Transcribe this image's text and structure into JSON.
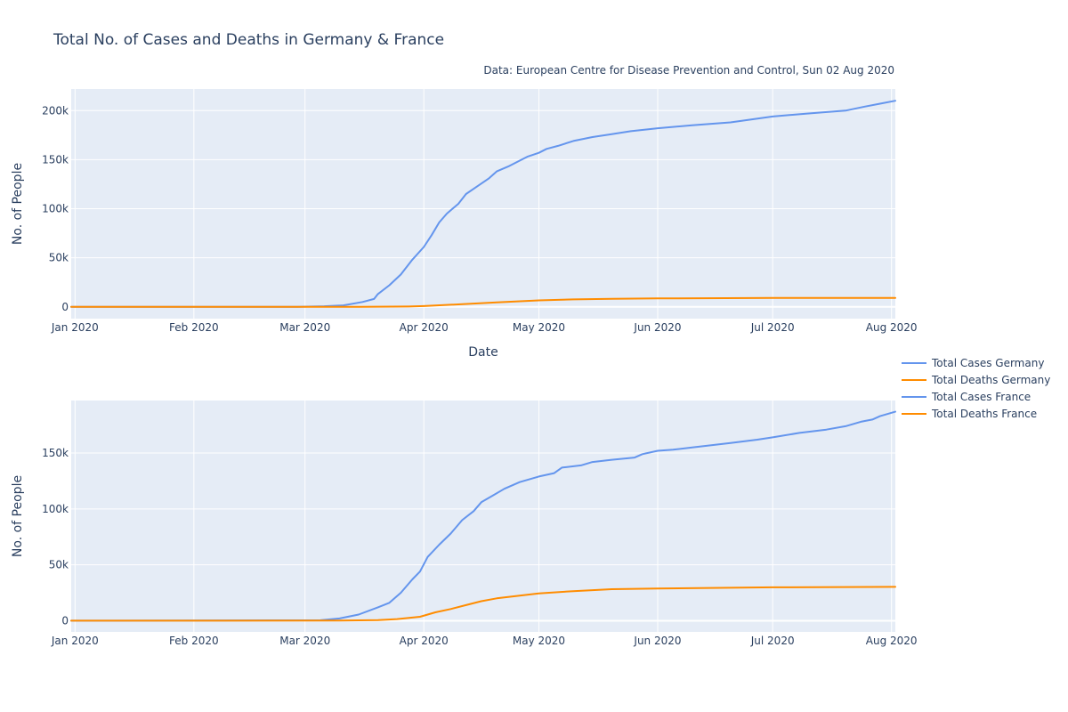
{
  "chart_data": {
    "type": "line",
    "title": "Total No. of Cases and Deaths in Germany & France",
    "source_note": "Data: European Centre for Disease Prevention and Control, Sun 02 Aug 2020",
    "legend_position": "right",
    "colors": {
      "cases": "#6495ED",
      "deaths": "#FF8C00"
    },
    "subplots": [
      {
        "id": "germany",
        "xlabel": "Date",
        "ylabel": "No. of People",
        "xlim": [
          "2019-12-31",
          "2020-08-02"
        ],
        "ylim": [
          -12000,
          222000
        ],
        "x_ticks": [
          {
            "date": "2020-01-01",
            "label": "Jan 2020"
          },
          {
            "date": "2020-02-01",
            "label": "Feb 2020"
          },
          {
            "date": "2020-03-01",
            "label": "Mar 2020"
          },
          {
            "date": "2020-04-01",
            "label": "Apr 2020"
          },
          {
            "date": "2020-05-01",
            "label": "May 2020"
          },
          {
            "date": "2020-06-01",
            "label": "Jun 2020"
          },
          {
            "date": "2020-07-01",
            "label": "Jul 2020"
          },
          {
            "date": "2020-08-01",
            "label": "Aug 2020"
          }
        ],
        "y_ticks": [
          {
            "value": 0,
            "label": "0"
          },
          {
            "value": 50000,
            "label": "50k"
          },
          {
            "value": 100000,
            "label": "100k"
          },
          {
            "value": 150000,
            "label": "150k"
          },
          {
            "value": 200000,
            "label": "200k"
          }
        ],
        "series": [
          {
            "name": "Total Cases Germany",
            "color": "#6495ED",
            "points": [
              [
                "2019-12-31",
                0
              ],
              [
                "2020-02-28",
                0
              ],
              [
                "2020-03-06",
                600
              ],
              [
                "2020-03-11",
                1500
              ],
              [
                "2020-03-16",
                5000
              ],
              [
                "2020-03-19",
                8000
              ],
              [
                "2020-03-20",
                13000
              ],
              [
                "2020-03-23",
                22000
              ],
              [
                "2020-03-26",
                33000
              ],
              [
                "2020-03-29",
                48000
              ],
              [
                "2020-04-01",
                61000
              ],
              [
                "2020-04-03",
                73000
              ],
              [
                "2020-04-05",
                86000
              ],
              [
                "2020-04-07",
                95000
              ],
              [
                "2020-04-10",
                105000
              ],
              [
                "2020-04-12",
                115000
              ],
              [
                "2020-04-15",
                123000
              ],
              [
                "2020-04-18",
                131000
              ],
              [
                "2020-04-20",
                138000
              ],
              [
                "2020-04-23",
                143000
              ],
              [
                "2020-04-26",
                149000
              ],
              [
                "2020-04-28",
                153000
              ],
              [
                "2020-05-01",
                157000
              ],
              [
                "2020-05-03",
                161000
              ],
              [
                "2020-05-06",
                164000
              ],
              [
                "2020-05-10",
                169000
              ],
              [
                "2020-05-15",
                173000
              ],
              [
                "2020-05-20",
                176000
              ],
              [
                "2020-05-25",
                179000
              ],
              [
                "2020-06-01",
                182000
              ],
              [
                "2020-06-10",
                185000
              ],
              [
                "2020-06-20",
                188000
              ],
              [
                "2020-07-01",
                194000
              ],
              [
                "2020-07-10",
                197000
              ],
              [
                "2020-07-20",
                200000
              ],
              [
                "2020-07-25",
                204000
              ],
              [
                "2020-07-29",
                207000
              ],
              [
                "2020-08-02",
                210000
              ]
            ]
          },
          {
            "name": "Total Deaths Germany",
            "color": "#FF8C00",
            "points": [
              [
                "2019-12-31",
                0
              ],
              [
                "2020-03-15",
                0
              ],
              [
                "2020-03-28",
                300
              ],
              [
                "2020-04-01",
                800
              ],
              [
                "2020-04-10",
                2500
              ],
              [
                "2020-04-20",
                4500
              ],
              [
                "2020-05-01",
                6600
              ],
              [
                "2020-05-10",
                7600
              ],
              [
                "2020-05-20",
                8200
              ],
              [
                "2020-06-01",
                8600
              ],
              [
                "2020-07-01",
                9000
              ],
              [
                "2020-08-02",
                9150
              ]
            ]
          }
        ]
      },
      {
        "id": "france",
        "xlabel": "",
        "ylabel": "No. of People",
        "xlim": [
          "2019-12-31",
          "2020-08-02"
        ],
        "ylim": [
          -10000,
          197000
        ],
        "x_ticks": [
          {
            "date": "2020-01-01",
            "label": "Jan 2020"
          },
          {
            "date": "2020-02-01",
            "label": "Feb 2020"
          },
          {
            "date": "2020-03-01",
            "label": "Mar 2020"
          },
          {
            "date": "2020-04-01",
            "label": "Apr 2020"
          },
          {
            "date": "2020-05-01",
            "label": "May 2020"
          },
          {
            "date": "2020-06-01",
            "label": "Jun 2020"
          },
          {
            "date": "2020-07-01",
            "label": "Jul 2020"
          },
          {
            "date": "2020-08-01",
            "label": "Aug 2020"
          }
        ],
        "y_ticks": [
          {
            "value": 0,
            "label": "0"
          },
          {
            "value": 50000,
            "label": "50k"
          },
          {
            "value": 100000,
            "label": "100k"
          },
          {
            "value": 150000,
            "label": "150k"
          }
        ],
        "series": [
          {
            "name": "Total Cases France",
            "color": "#6495ED",
            "points": [
              [
                "2019-12-31",
                0
              ],
              [
                "2020-03-05",
                400
              ],
              [
                "2020-03-10",
                2000
              ],
              [
                "2020-03-15",
                5500
              ],
              [
                "2020-03-20",
                12000
              ],
              [
                "2020-03-23",
                16000
              ],
              [
                "2020-03-26",
                25000
              ],
              [
                "2020-03-29",
                37000
              ],
              [
                "2020-03-31",
                44000
              ],
              [
                "2020-04-02",
                57000
              ],
              [
                "2020-04-05",
                68000
              ],
              [
                "2020-04-08",
                78000
              ],
              [
                "2020-04-11",
                90000
              ],
              [
                "2020-04-14",
                98000
              ],
              [
                "2020-04-16",
                106000
              ],
              [
                "2020-04-19",
                112000
              ],
              [
                "2020-04-22",
                118000
              ],
              [
                "2020-04-26",
                124000
              ],
              [
                "2020-05-01",
                129000
              ],
              [
                "2020-05-05",
                132000
              ],
              [
                "2020-05-07",
                137000
              ],
              [
                "2020-05-12",
                139000
              ],
              [
                "2020-05-15",
                142000
              ],
              [
                "2020-05-20",
                144000
              ],
              [
                "2020-05-26",
                146000
              ],
              [
                "2020-05-28",
                149000
              ],
              [
                "2020-06-01",
                152000
              ],
              [
                "2020-06-05",
                153000
              ],
              [
                "2020-06-10",
                155000
              ],
              [
                "2020-06-20",
                159000
              ],
              [
                "2020-06-27",
                162000
              ],
              [
                "2020-07-01",
                164000
              ],
              [
                "2020-07-08",
                168000
              ],
              [
                "2020-07-15",
                171000
              ],
              [
                "2020-07-20",
                174000
              ],
              [
                "2020-07-24",
                178000
              ],
              [
                "2020-07-27",
                180000
              ],
              [
                "2020-07-29",
                183000
              ],
              [
                "2020-08-02",
                187000
              ]
            ]
          },
          {
            "name": "Total Deaths France",
            "color": "#FF8C00",
            "points": [
              [
                "2019-12-31",
                0
              ],
              [
                "2020-03-10",
                100
              ],
              [
                "2020-03-20",
                600
              ],
              [
                "2020-03-25",
                1500
              ],
              [
                "2020-03-31",
                3500
              ],
              [
                "2020-04-04",
                7500
              ],
              [
                "2020-04-08",
                10500
              ],
              [
                "2020-04-12",
                14000
              ],
              [
                "2020-04-16",
                17500
              ],
              [
                "2020-04-20",
                20000
              ],
              [
                "2020-04-26",
                22500
              ],
              [
                "2020-05-01",
                24500
              ],
              [
                "2020-05-10",
                26500
              ],
              [
                "2020-05-20",
                28200
              ],
              [
                "2020-06-01",
                28800
              ],
              [
                "2020-07-01",
                29900
              ],
              [
                "2020-08-02",
                30300
              ]
            ]
          }
        ]
      }
    ]
  }
}
